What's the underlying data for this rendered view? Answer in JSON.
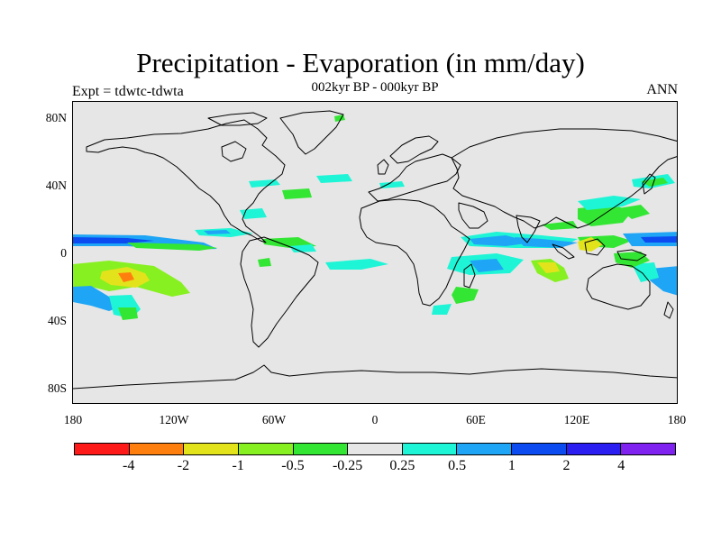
{
  "title": "Precipitation - Evaporation (in mm/day)",
  "subtitle": "002kyr BP - 000kyr BP",
  "left_label": "Expt = tdwtc-tdwta",
  "right_label": "ANN",
  "y_ticks": [
    "80N",
    "40N",
    "0",
    "40S",
    "80S"
  ],
  "x_ticks": [
    "180",
    "120W",
    "60W",
    "0",
    "60E",
    "120E",
    "180"
  ],
  "colorbar": {
    "colors": [
      "#ff1a1a",
      "#ff7f0e",
      "#e3e31c",
      "#87f020",
      "#33e633",
      "#e6e6e6",
      "#1ef5d6",
      "#1ea5f5",
      "#0c4bf0",
      "#2a1ef0",
      "#7f22f0"
    ],
    "labels": [
      "-4",
      "-2",
      "-1",
      "-0.5",
      "-0.25",
      "0.25",
      "0.5",
      "1",
      "2",
      "4"
    ]
  },
  "map_colors": {
    "ocean_background": "#e6e6e6",
    "coast": "#000000"
  }
}
